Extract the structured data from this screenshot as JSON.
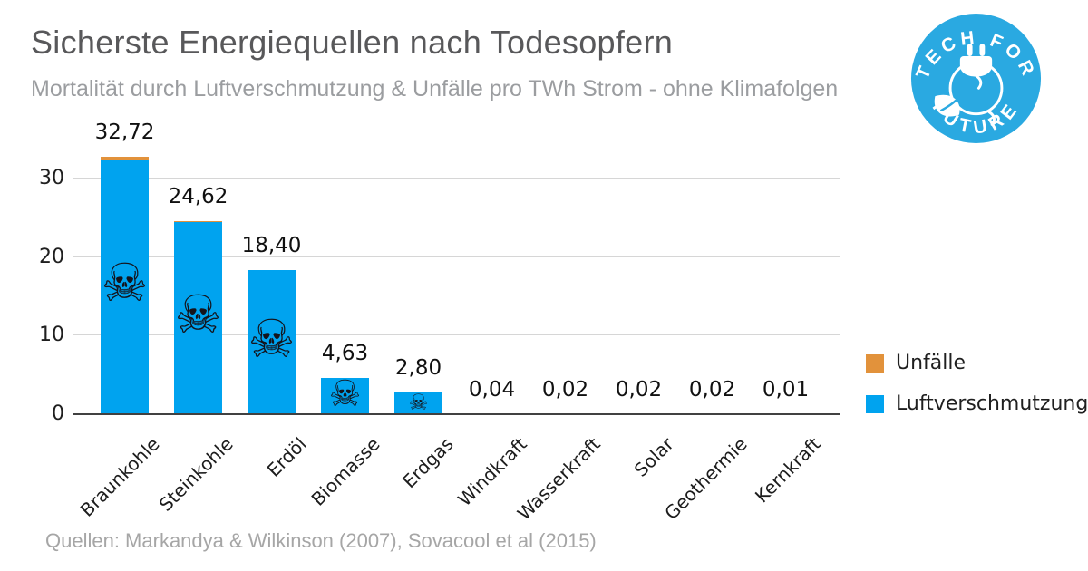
{
  "header": {
    "title": "Sicherste Energiequellen nach Todesopfern",
    "subtitle": "Mortalität durch Luftverschmutzung & Unfälle pro TWh Strom - ohne Klimafolgen"
  },
  "logo": {
    "text_top": "TECH FOR",
    "text_bottom": "FUTURE",
    "bg_color": "#2aa9e1"
  },
  "legend": {
    "items": [
      {
        "label": "Unfälle",
        "color": "#e2923b"
      },
      {
        "label": "Luftverschmutzung",
        "color": "#00a3ef"
      }
    ]
  },
  "source": {
    "text": "Quellen: Markandya & Wilkinson (2007), Sovacool et al (2015)"
  },
  "chart_data": {
    "type": "bar",
    "stacked": true,
    "title": "Sicherste Energiequellen nach Todesopfern",
    "subtitle": "Mortalität durch Luftverschmutzung & Unfälle pro TWh Strom - ohne Klimafolgen",
    "categories": [
      "Braunkohle",
      "Steinkohle",
      "Erdöl",
      "Biomasse",
      "Erdgas",
      "Windkraft",
      "Wasserkraft",
      "Solar",
      "Geothermie",
      "Kernkraft"
    ],
    "totals": [
      32.72,
      24.62,
      18.4,
      4.63,
      2.8,
      0.04,
      0.02,
      0.02,
      0.02,
      0.01
    ],
    "total_labels": [
      "32,72",
      "24,62",
      "18,40",
      "4,63",
      "2,80",
      "0,04",
      "0,02",
      "0,02",
      "0,02",
      "0,01"
    ],
    "series": [
      {
        "name": "Unfälle",
        "color": "#e2923b",
        "values": [
          0.3,
          0.17,
          0.05,
          0.05,
          0.04,
          0.04,
          0.02,
          0.02,
          0.02,
          0.01
        ]
      },
      {
        "name": "Luftverschmutzung",
        "color": "#00a3ef",
        "values": [
          32.42,
          24.45,
          18.35,
          4.58,
          2.76,
          0,
          0,
          0,
          0,
          0
        ]
      }
    ],
    "yticks": [
      0,
      10,
      20,
      30
    ],
    "ylim": [
      0,
      34
    ],
    "grid": true,
    "legend_position": "right",
    "bar_icon": "skull-and-crossbones",
    "bar_icon_char": "☠"
  }
}
